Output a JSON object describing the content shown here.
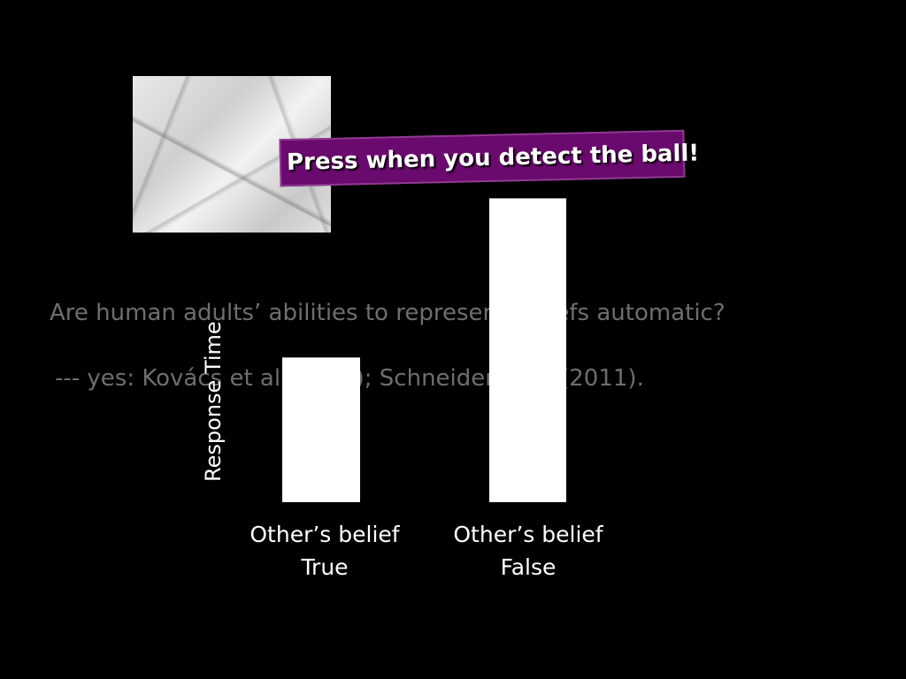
{
  "slide": {
    "question": "Are human adults’ abilities to represent beliefs automatic?",
    "citation": "--- yes: Kovács et al (2010); Schneider et al (2011).",
    "banner": "Press when you detect the ball!",
    "marble_image": "marble-texture"
  },
  "colors": {
    "background": "#000000",
    "banner": "#6a0a6e",
    "bars": "#ffffff",
    "faded_text": "#6e6e6e"
  },
  "chart_data": {
    "type": "bar",
    "categories": [
      [
        "Other’s belief",
        "True"
      ],
      [
        "Other’s belief",
        "False"
      ]
    ],
    "values": [
      1,
      2.1
    ],
    "ylabel": "Response Time",
    "ylim": [
      0,
      2.2
    ],
    "grid": false
  }
}
